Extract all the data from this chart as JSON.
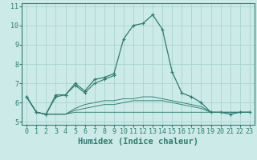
{
  "xlabel": "Humidex (Indice chaleur)",
  "background_color": "#cceae8",
  "grid_color": "#aad4d2",
  "line_color": "#2e7d72",
  "x": [
    0,
    1,
    2,
    3,
    4,
    5,
    6,
    7,
    8,
    9,
    10,
    11,
    12,
    13,
    14,
    15,
    16,
    17,
    18,
    19,
    20,
    21,
    22,
    23
  ],
  "line1": [
    6.3,
    5.5,
    5.4,
    6.4,
    6.4,
    7.0,
    6.6,
    7.2,
    7.3,
    7.5,
    9.3,
    10.0,
    10.1,
    10.55,
    9.8,
    7.6,
    6.5,
    6.3,
    6.0,
    5.5,
    5.5,
    5.4,
    5.5,
    5.5
  ],
  "line2": [
    6.3,
    5.5,
    5.4,
    6.3,
    6.4,
    6.9,
    6.5,
    7.0,
    7.2,
    7.4,
    null,
    null,
    null,
    null,
    null,
    null,
    null,
    null,
    null,
    null,
    null,
    null,
    null,
    null
  ],
  "line3": [
    6.3,
    5.5,
    5.4,
    5.4,
    5.4,
    5.5,
    5.5,
    5.5,
    5.5,
    5.5,
    5.5,
    5.5,
    5.5,
    5.5,
    5.5,
    5.5,
    5.5,
    5.5,
    5.5,
    5.5,
    5.5,
    5.5,
    5.5,
    5.5
  ],
  "line4": [
    6.3,
    5.5,
    5.4,
    5.4,
    5.4,
    5.6,
    5.7,
    5.8,
    5.9,
    5.9,
    6.0,
    6.1,
    6.1,
    6.1,
    6.1,
    6.0,
    5.9,
    5.8,
    5.7,
    5.5,
    5.5,
    5.5,
    5.5,
    5.5
  ],
  "line5": [
    6.3,
    5.5,
    5.4,
    5.4,
    5.4,
    5.7,
    5.9,
    6.0,
    6.1,
    6.1,
    6.2,
    6.2,
    6.3,
    6.3,
    6.2,
    6.1,
    6.0,
    5.9,
    5.8,
    5.5,
    5.5,
    5.5,
    5.5,
    5.5
  ],
  "ylim": [
    4.85,
    11.15
  ],
  "xlim": [
    -0.5,
    23.5
  ],
  "yticks": [
    5,
    6,
    7,
    8,
    9,
    10,
    11
  ],
  "xticks": [
    0,
    1,
    2,
    3,
    4,
    5,
    6,
    7,
    8,
    9,
    10,
    11,
    12,
    13,
    14,
    15,
    16,
    17,
    18,
    19,
    20,
    21,
    22,
    23
  ],
  "title_fontsize": 7.0,
  "xlabel_fontsize": 7.5,
  "tick_fontsize": 6.0
}
